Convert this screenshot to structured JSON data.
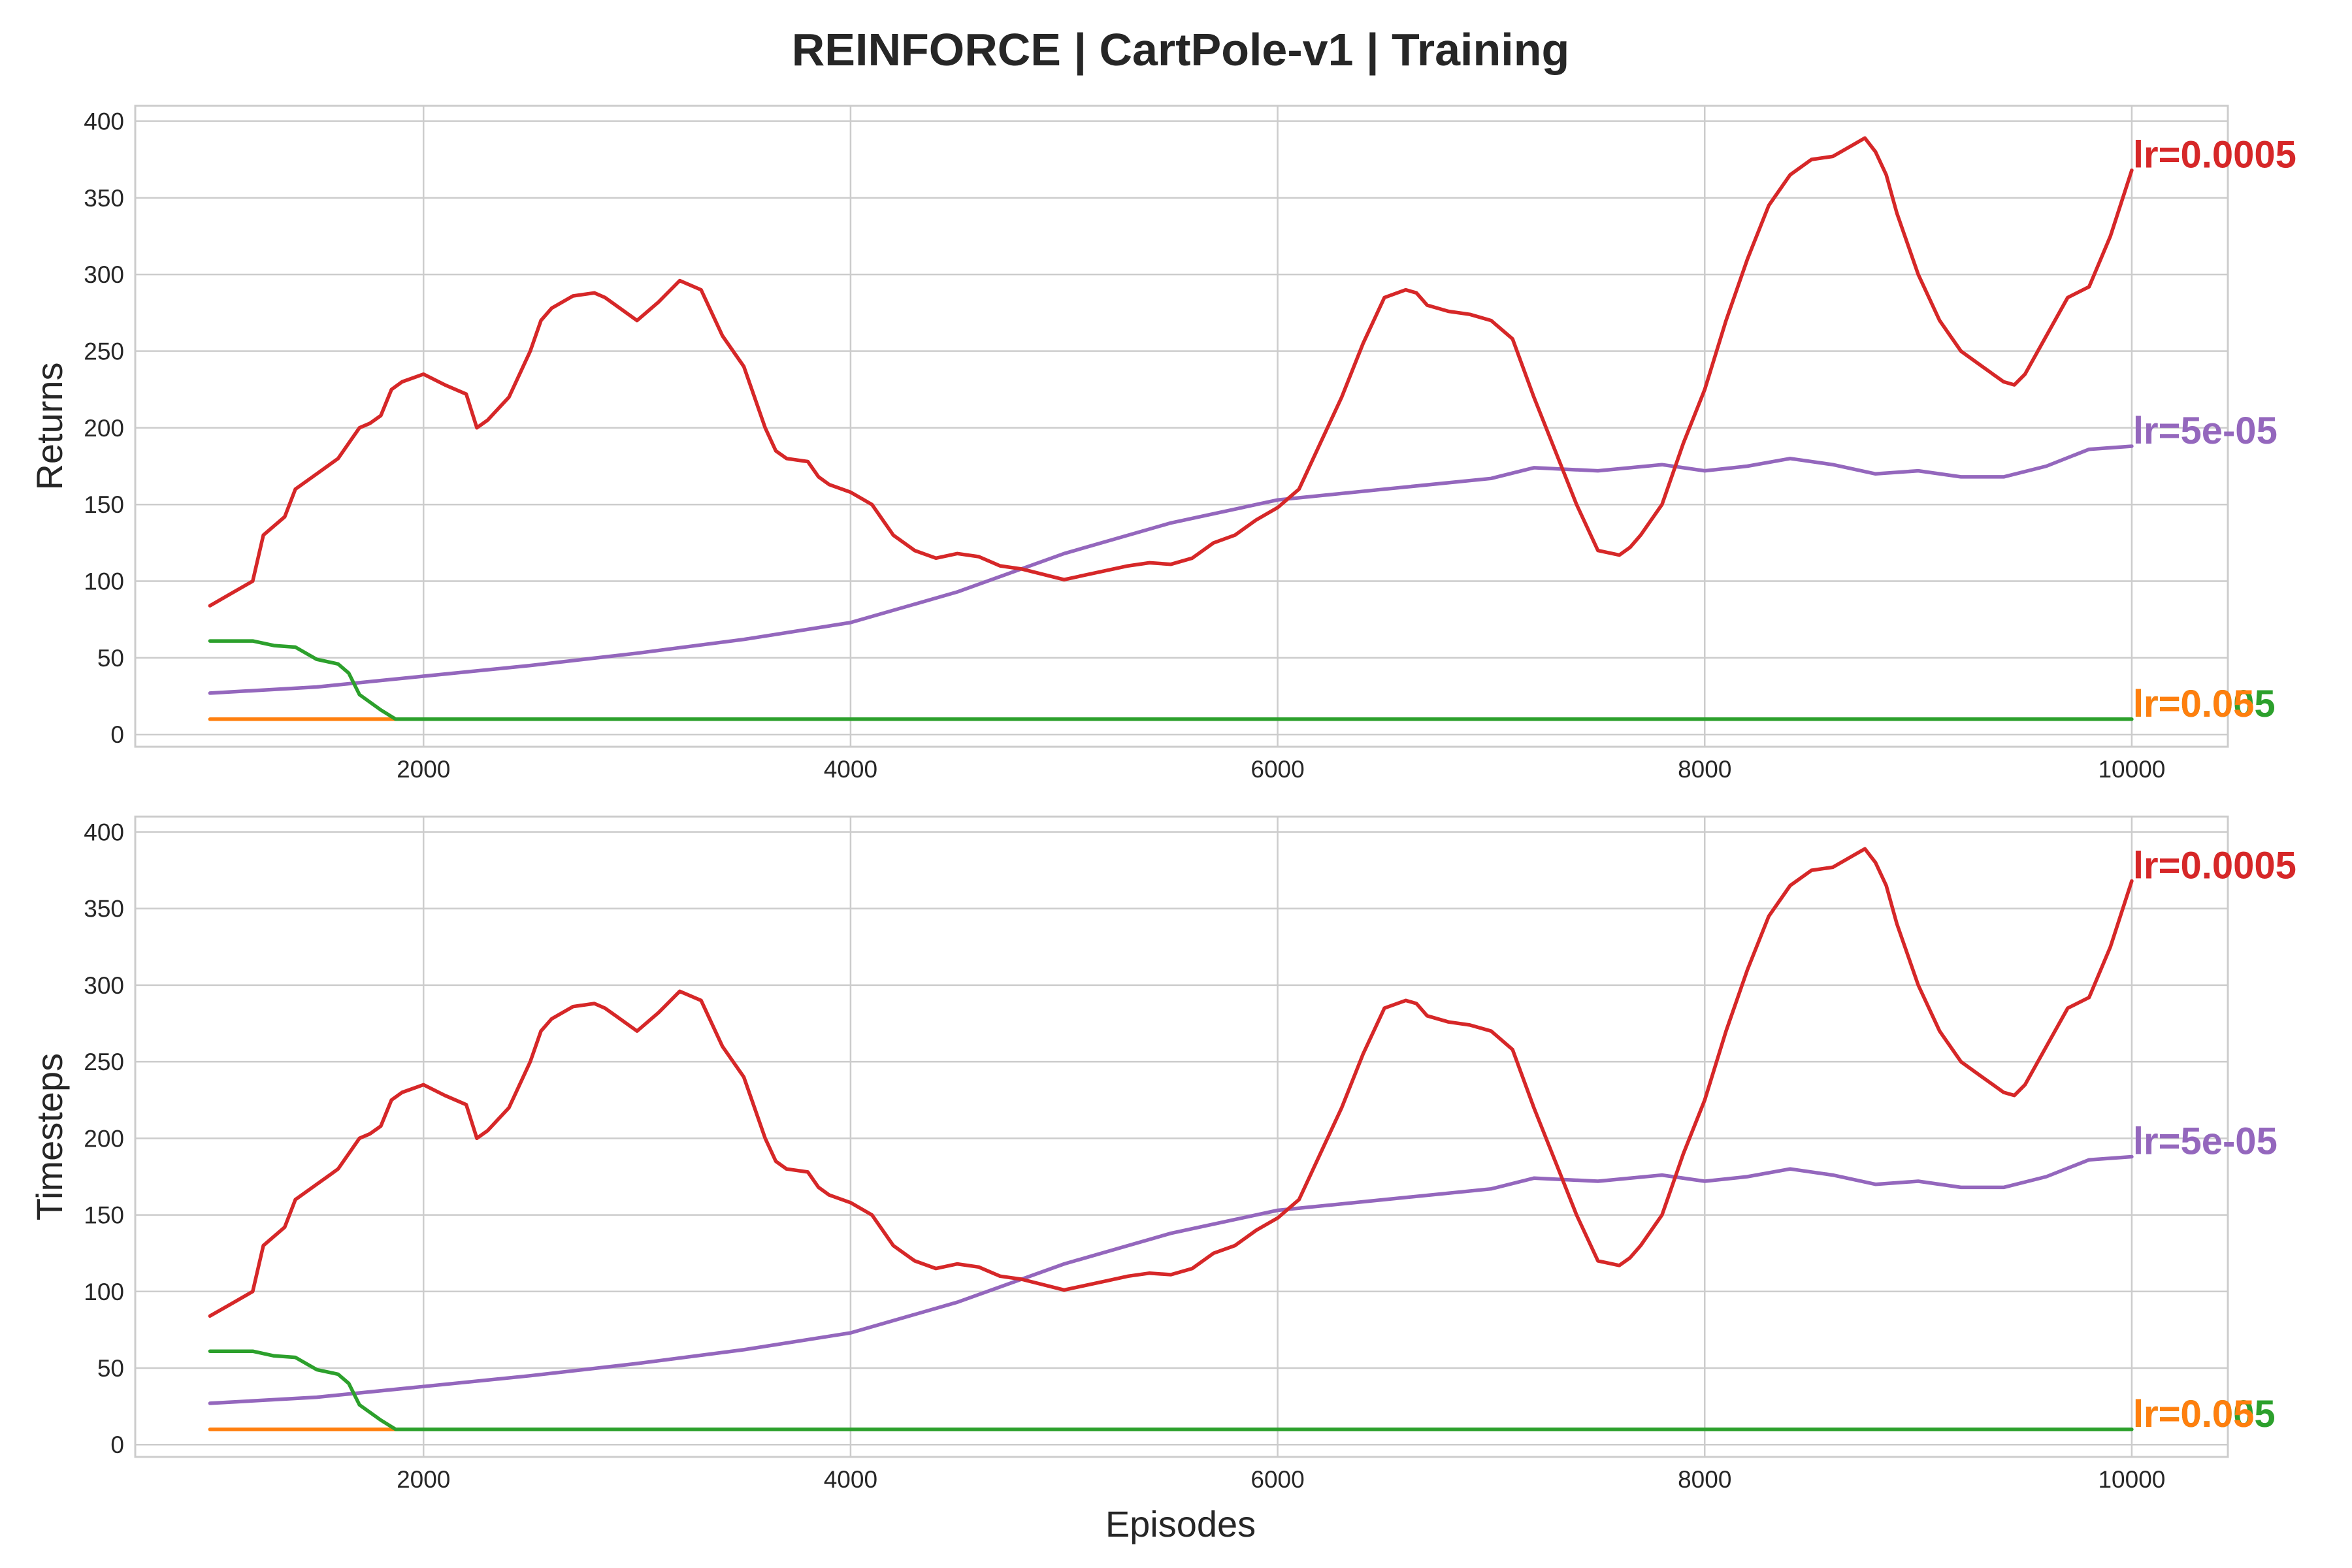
{
  "chart_data": {
    "type": "line",
    "title": "REINFORCE | CartPole-v1 | Training",
    "xlabel": "Episodes",
    "xlim": [
      650,
      10450
    ],
    "xticks": [
      2000,
      4000,
      6000,
      8000,
      10000
    ],
    "grid": true,
    "colors": {
      "lr=0.0005": "#d62728",
      "lr=5e-05": "#9467bd",
      "lr=0.005": "#2ca02c",
      "lr=0.05": "#ff7f0e"
    },
    "panels": [
      {
        "ylabel": "Returns",
        "ylim": [
          -8,
          410
        ],
        "yticks": [
          0,
          50,
          100,
          150,
          200,
          250,
          300,
          350,
          400
        ]
      },
      {
        "ylabel": "Timesteps",
        "ylim": [
          -8,
          410
        ],
        "yticks": [
          0,
          50,
          100,
          150,
          200,
          250,
          300,
          350,
          400
        ]
      }
    ],
    "series": [
      {
        "name": "lr=0.0005",
        "color": "#d62728",
        "end_label": "lr=0.0005",
        "x": [
          1000,
          1100,
          1200,
          1250,
          1350,
          1400,
          1500,
          1550,
          1600,
          1650,
          1700,
          1750,
          1800,
          1850,
          1900,
          2000,
          2100,
          2200,
          2250,
          2300,
          2400,
          2450,
          2500,
          2550,
          2600,
          2700,
          2800,
          2850,
          2900,
          3000,
          3100,
          3200,
          3300,
          3400,
          3500,
          3600,
          3650,
          3700,
          3800,
          3850,
          3900,
          4000,
          4100,
          4200,
          4300,
          4400,
          4500,
          4600,
          4700,
          4800,
          5000,
          5100,
          5200,
          5300,
          5400,
          5500,
          5600,
          5700,
          5800,
          5900,
          6000,
          6100,
          6200,
          6300,
          6400,
          6500,
          6600,
          6650,
          6700,
          6800,
          6900,
          7000,
          7100,
          7200,
          7300,
          7400,
          7500,
          7600,
          7650,
          7700,
          7800,
          7900,
          8000,
          8100,
          8200,
          8300,
          8400,
          8500,
          8600,
          8700,
          8750,
          8800,
          8850,
          8900,
          9000,
          9100,
          9200,
          9300,
          9400,
          9450,
          9500,
          9600,
          9700,
          9800,
          9900,
          10000
        ],
        "values": [
          84,
          92,
          100,
          130,
          142,
          160,
          170,
          175,
          180,
          190,
          200,
          203,
          208,
          225,
          230,
          235,
          228,
          222,
          200,
          205,
          220,
          235,
          250,
          270,
          278,
          286,
          288,
          285,
          280,
          270,
          282,
          296,
          290,
          260,
          240,
          200,
          185,
          180,
          178,
          168,
          163,
          158,
          150,
          130,
          120,
          115,
          118,
          116,
          110,
          108,
          101,
          104,
          107,
          110,
          112,
          111,
          115,
          125,
          130,
          140,
          148,
          160,
          190,
          220,
          255,
          285,
          290,
          288,
          280,
          276,
          274,
          270,
          258,
          220,
          185,
          150,
          120,
          117,
          122,
          130,
          150,
          190,
          225,
          270,
          310,
          345,
          365,
          375,
          377,
          385,
          389,
          380,
          365,
          340,
          300,
          270,
          250,
          240,
          230,
          228,
          235,
          260,
          285,
          292,
          325,
          368
        ]
      },
      {
        "name": "lr=5e-05",
        "color": "#9467bd",
        "end_label": "lr=5e-05",
        "x": [
          1000,
          1500,
          2000,
          2500,
          3000,
          3500,
          4000,
          4500,
          5000,
          5500,
          6000,
          6500,
          7000,
          7200,
          7500,
          7800,
          8000,
          8200,
          8400,
          8600,
          8800,
          9000,
          9200,
          9400,
          9600,
          9800,
          10000
        ],
        "values": [
          27,
          31,
          38,
          45,
          53,
          62,
          73,
          93,
          118,
          138,
          153,
          160,
          167,
          174,
          172,
          176,
          172,
          175,
          180,
          176,
          170,
          172,
          168,
          168,
          175,
          186,
          188
        ]
      },
      {
        "name": "lr=0.005",
        "color": "#2ca02c",
        "end_label": "lr=0.005",
        "x": [
          1000,
          1200,
          1300,
          1400,
          1500,
          1600,
          1650,
          1700,
          1800,
          1870,
          10000
        ],
        "values": [
          61,
          61,
          58,
          57,
          49,
          46,
          40,
          26,
          16,
          10,
          10
        ]
      },
      {
        "name": "lr=0.05",
        "color": "#ff7f0e",
        "end_label": "lr=0.05",
        "x": [
          1000,
          1870
        ],
        "values": [
          10,
          10
        ]
      }
    ]
  }
}
